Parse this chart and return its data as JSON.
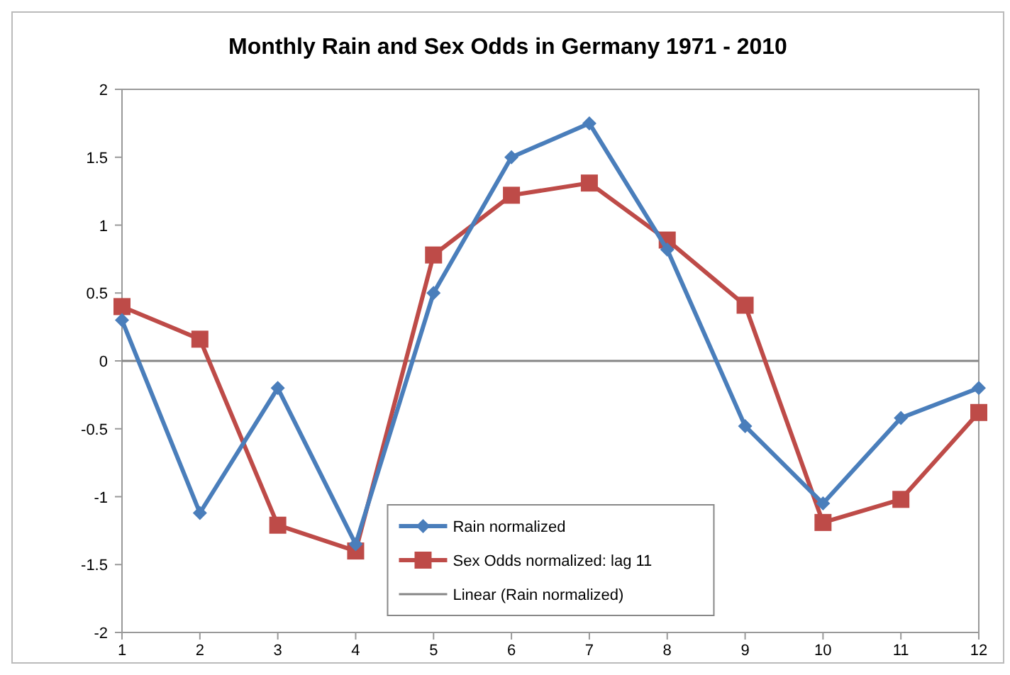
{
  "chart_data": {
    "type": "line",
    "title": "Monthly Rain and Sex Odds in Germany 1971 - 2010",
    "x": [
      1,
      2,
      3,
      4,
      5,
      6,
      7,
      8,
      9,
      10,
      11,
      12
    ],
    "xlim": [
      1,
      12
    ],
    "xticks": [
      1,
      2,
      3,
      4,
      5,
      6,
      7,
      8,
      9,
      10,
      11,
      12
    ],
    "ylim": [
      -2,
      2
    ],
    "yticks": [
      -2,
      -1.5,
      -1,
      -0.5,
      0,
      0.5,
      1,
      1.5,
      2
    ],
    "grid": false,
    "legend": "bottom",
    "line_style": "solid",
    "series": [
      {
        "name": "Rain normalized",
        "color": "#4a7ebb",
        "marker": "diamond",
        "values": [
          0.3,
          -1.12,
          -0.2,
          -1.35,
          0.5,
          1.5,
          1.75,
          0.82,
          -0.48,
          -1.05,
          -0.42,
          -0.2
        ]
      },
      {
        "name": "Sex Odds normalized: lag 11",
        "color": "#be4b48",
        "marker": "square",
        "values": [
          0.4,
          0.16,
          -1.21,
          -1.4,
          0.78,
          1.22,
          1.31,
          0.89,
          0.41,
          -1.19,
          -1.02,
          -0.38
        ]
      },
      {
        "name": "Linear (Rain normalized)",
        "color": "#868686",
        "marker": "none",
        "x": [
          1,
          12
        ],
        "values": [
          0,
          0
        ]
      }
    ]
  }
}
